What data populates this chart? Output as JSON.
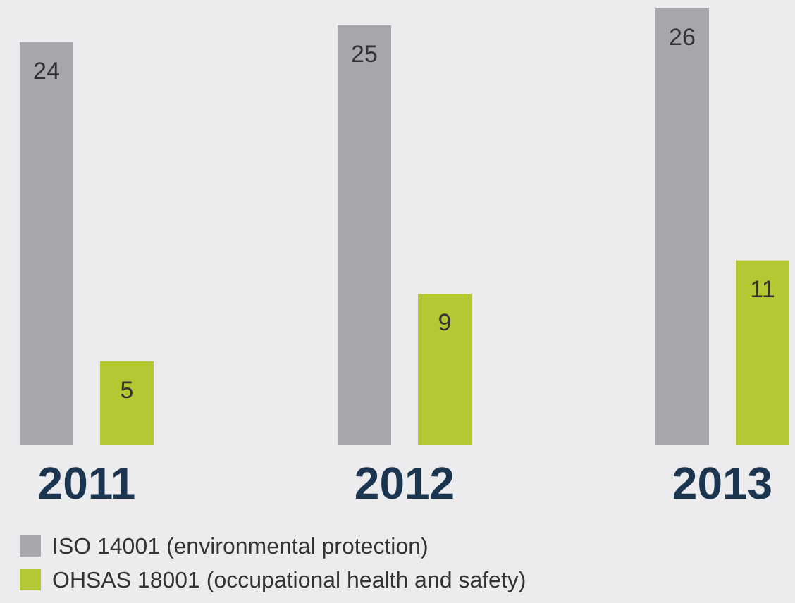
{
  "chart_data": {
    "type": "bar",
    "categories": [
      "2011",
      "2012",
      "2013"
    ],
    "series": [
      {
        "name": "ISO 14001 (environmental protection)",
        "color": "#a7a8ac",
        "values": [
          24,
          25,
          26
        ]
      },
      {
        "name": "OHSAS 18001 (occupational health and safety)",
        "color": "#b3c833",
        "values": [
          5,
          9,
          11
        ]
      }
    ],
    "data_labels": true,
    "legend": "bottom",
    "grid": false
  }
}
